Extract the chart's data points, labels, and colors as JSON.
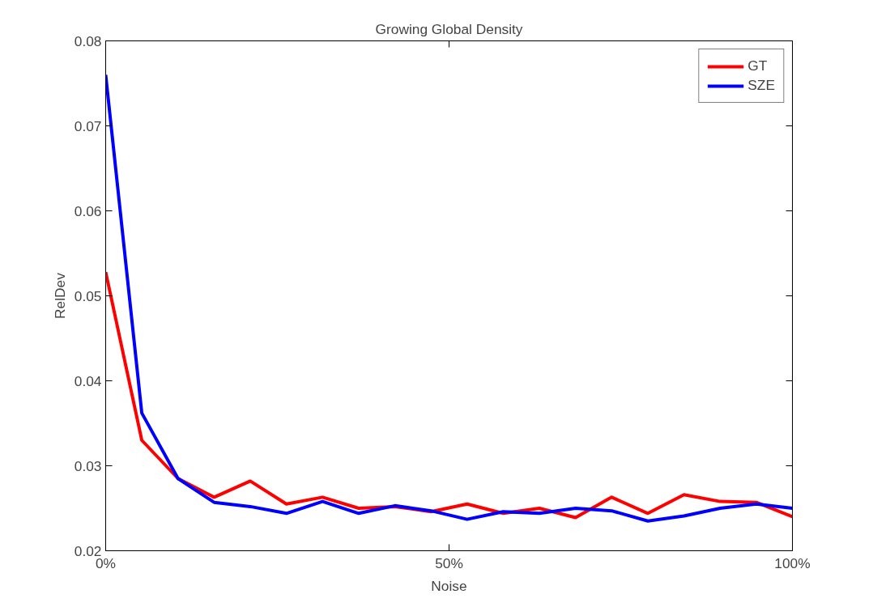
{
  "chart_data": {
    "type": "line",
    "title": "Growing Global Density",
    "xlabel": "Noise",
    "ylabel": "RelDev",
    "x": [
      0,
      5.26,
      10.53,
      15.79,
      21.05,
      26.32,
      31.58,
      36.84,
      42.11,
      47.37,
      52.63,
      57.89,
      63.16,
      68.42,
      73.68,
      78.95,
      84.21,
      89.47,
      94.74,
      100
    ],
    "series": [
      {
        "name": "GT",
        "color": "#ff0000",
        "values": [
          0.0528,
          0.033,
          0.0285,
          0.0263,
          0.0282,
          0.0255,
          0.0263,
          0.025,
          0.0252,
          0.0246,
          0.0255,
          0.0244,
          0.025,
          0.0239,
          0.0263,
          0.0244,
          0.0266,
          0.0258,
          0.0257,
          0.024
        ]
      },
      {
        "name": "SZE",
        "color": "#0000ff",
        "values": [
          0.076,
          0.0362,
          0.0285,
          0.0257,
          0.0252,
          0.0244,
          0.0258,
          0.0244,
          0.0253,
          0.0247,
          0.0237,
          0.0246,
          0.0244,
          0.025,
          0.0247,
          0.0235,
          0.0241,
          0.025,
          0.0255,
          0.025
        ]
      }
    ],
    "xlim": [
      0,
      100
    ],
    "xticks": [
      {
        "value": 0,
        "label": "0%"
      },
      {
        "value": 50,
        "label": "50%"
      },
      {
        "value": 100,
        "label": "100%"
      }
    ],
    "ylim": [
      0.02,
      0.08
    ],
    "yticks": [
      0.02,
      0.03,
      0.04,
      0.05,
      0.06,
      0.07,
      0.08
    ],
    "grid": false,
    "legend": "top right",
    "marker": "none",
    "line_style": "solid"
  }
}
